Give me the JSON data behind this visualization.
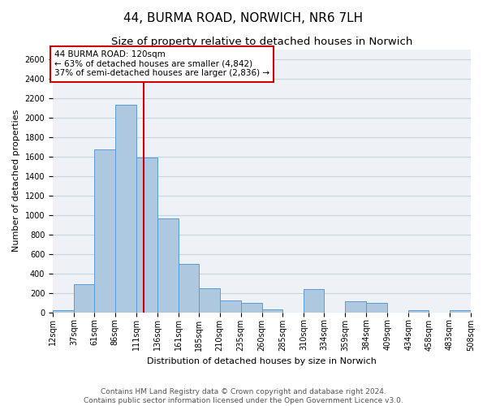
{
  "title": "44, BURMA ROAD, NORWICH, NR6 7LH",
  "subtitle": "Size of property relative to detached houses in Norwich",
  "xlabel": "Distribution of detached houses by size in Norwich",
  "ylabel": "Number of detached properties",
  "bar_edges": [
    12,
    37,
    61,
    86,
    111,
    136,
    161,
    185,
    210,
    235,
    260,
    285,
    310,
    334,
    359,
    384,
    409,
    434,
    458,
    483,
    508
  ],
  "bar_heights": [
    20,
    290,
    1670,
    2130,
    1590,
    960,
    500,
    250,
    120,
    100,
    30,
    0,
    240,
    0,
    110,
    100,
    0,
    20,
    0,
    20
  ],
  "bar_color": "#aec8e0",
  "bar_edgecolor": "#5b9bd5",
  "vline_color": "#cc0000",
  "vline_x": 120,
  "annotation_box_text": "44 BURMA ROAD: 120sqm\n← 63% of detached houses are smaller (4,842)\n37% of semi-detached houses are larger (2,836) →",
  "annotation_box_facecolor": "white",
  "annotation_box_edgecolor": "#cc0000",
  "ylim": [
    0,
    2700
  ],
  "yticks": [
    0,
    200,
    400,
    600,
    800,
    1000,
    1200,
    1400,
    1600,
    1800,
    2000,
    2200,
    2400,
    2600
  ],
  "tick_labels": [
    "12sqm",
    "37sqm",
    "61sqm",
    "86sqm",
    "111sqm",
    "136sqm",
    "161sqm",
    "185sqm",
    "210sqm",
    "235sqm",
    "260sqm",
    "285sqm",
    "310sqm",
    "334sqm",
    "359sqm",
    "384sqm",
    "409sqm",
    "434sqm",
    "458sqm",
    "483sqm",
    "508sqm"
  ],
  "footer_text": "Contains HM Land Registry data © Crown copyright and database right 2024.\nContains public sector information licensed under the Open Government Licence v3.0.",
  "background_color": "#eef2f7",
  "grid_color": "#c8d4e0",
  "title_fontsize": 11,
  "subtitle_fontsize": 9.5,
  "axis_label_fontsize": 8,
  "tick_fontsize": 7,
  "annot_fontsize": 7.5,
  "footer_fontsize": 6.5
}
